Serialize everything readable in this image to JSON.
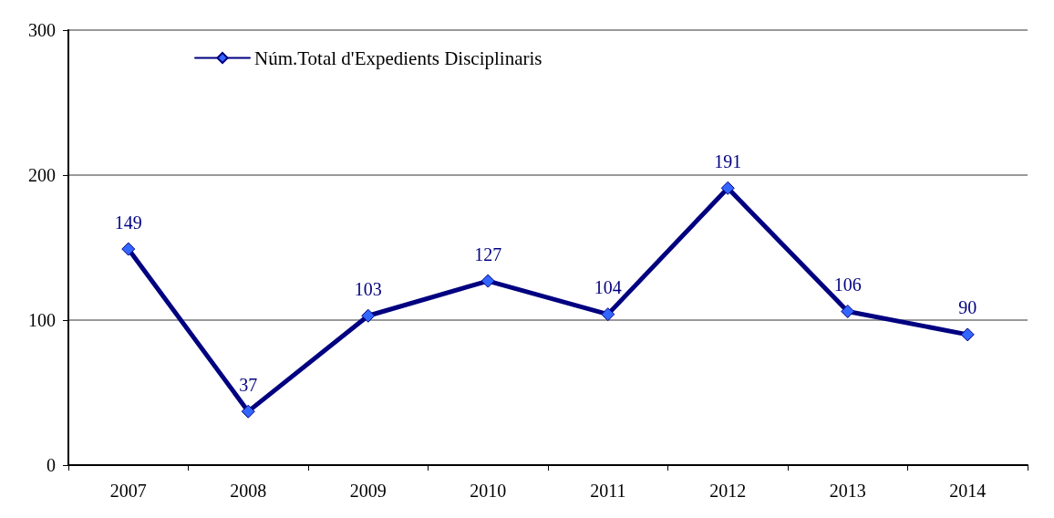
{
  "chart_data": {
    "type": "line",
    "categories": [
      "2007",
      "2008",
      "2009",
      "2010",
      "2011",
      "2012",
      "2013",
      "2014"
    ],
    "series": [
      {
        "name": "Núm.Total d'Expedients Disciplinaris",
        "color": "#000080",
        "values": [
          149,
          37,
          103,
          127,
          104,
          191,
          106,
          90
        ]
      }
    ],
    "ylim": [
      0,
      300
    ],
    "yticks": [
      0,
      100,
      200,
      300
    ],
    "grid": "y",
    "legend": "top left",
    "marker": "diamond",
    "line_style": "solid",
    "data_labels": true
  }
}
